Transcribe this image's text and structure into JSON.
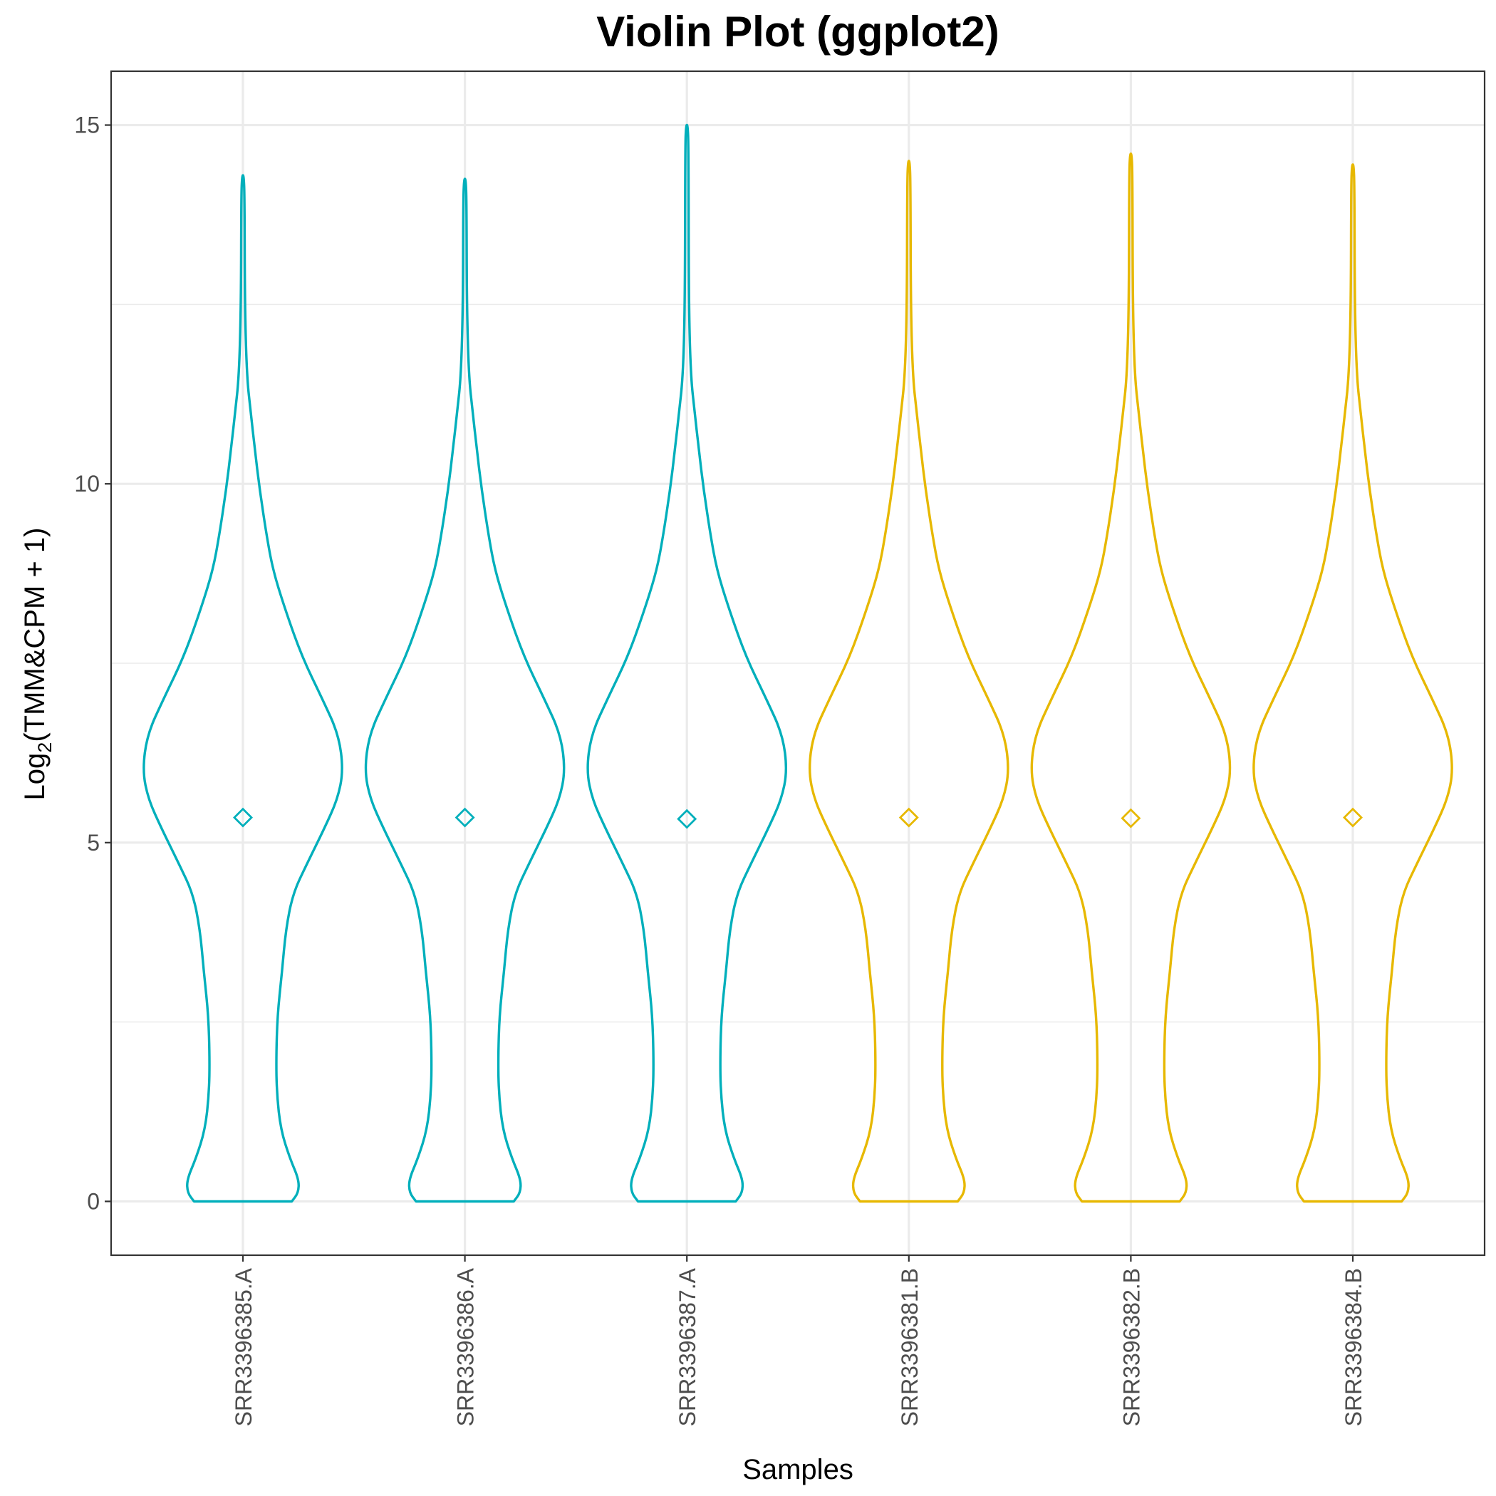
{
  "chart_data": {
    "type": "violin",
    "title": "Violin Plot (ggplot2)",
    "xlabel": "Samples",
    "ylabel": {
      "prefix": "Log",
      "subscript": "2",
      "suffix": "(TMM&CPM + 1)"
    },
    "ylim": [
      -0.75,
      15.75
    ],
    "yticks": [
      0,
      5,
      10,
      15
    ],
    "grid": true,
    "legend": "none",
    "colors": {
      "A": "#00AFBB",
      "B": "#E7B800"
    },
    "categories": [
      "SRR3396385.A",
      "SRR3396386.A",
      "SRR3396387.A",
      "SRR3396381.B",
      "SRR3396382.B",
      "SRR3396384.B"
    ],
    "groups": [
      "A",
      "A",
      "A",
      "B",
      "B",
      "B"
    ],
    "means": [
      5.35,
      5.35,
      5.33,
      5.35,
      5.34,
      5.35
    ],
    "maxima": [
      14.3,
      14.25,
      15.0,
      14.5,
      14.6,
      14.45
    ],
    "minima": [
      0,
      0,
      0,
      0,
      0,
      0
    ]
  }
}
